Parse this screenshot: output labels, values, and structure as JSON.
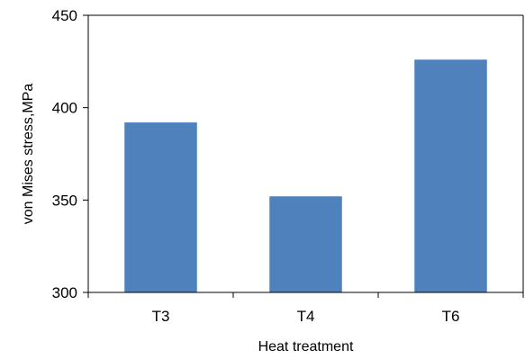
{
  "chart_data": {
    "type": "bar",
    "title": "",
    "xlabel": "Heat treatment",
    "ylabel": "von Mises stress,MPa",
    "categories": [
      "T3",
      "T4",
      "T6"
    ],
    "series": [
      {
        "values": [
          392,
          352,
          426
        ],
        "color": "#4f81bd"
      }
    ],
    "ylim": [
      300,
      450
    ],
    "yticks": [
      300,
      350,
      400,
      450
    ],
    "grid": false,
    "legend": "none"
  }
}
